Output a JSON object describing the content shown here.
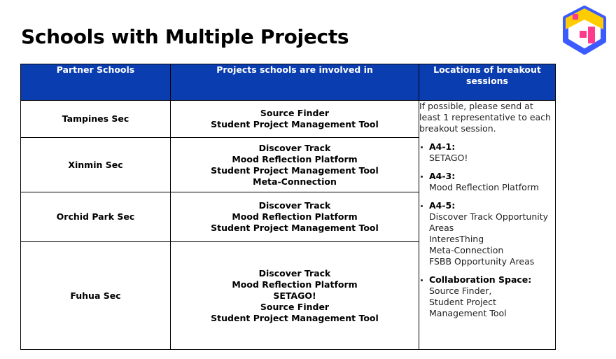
{
  "title": "Schools with Multiple Projects",
  "logo": {
    "icon": "brand-logo-icon",
    "colors": [
      "#ffcc00",
      "#ff3b8d",
      "#3b5bff"
    ]
  },
  "table": {
    "headers": [
      "Partner Schools",
      "Projects schools are involved in",
      "Locations of breakout sessions"
    ],
    "rows": [
      {
        "school": "Tampines Sec",
        "projects": [
          "Source Finder",
          "Student Project Management Tool"
        ]
      },
      {
        "school": "Xinmin Sec",
        "projects": [
          "Discover Track",
          "Mood Reflection Platform",
          "Student Project Management Tool",
          "Meta-Connection"
        ]
      },
      {
        "school": "Orchid Park Sec",
        "projects": [
          "Discover Track",
          "Mood Reflection Platform",
          "Student Project Management Tool"
        ]
      },
      {
        "school": "Fuhua Sec",
        "projects": [
          "Discover Track",
          "Mood Reflection Platform",
          "SETAGO!",
          "Source Finder",
          "Student Project Management Tool"
        ]
      }
    ],
    "locations": {
      "intro": "If possible, please send at least 1 representative to each breakout session.",
      "items": [
        {
          "title": "A4-1:",
          "entries": [
            "SETAGO!"
          ]
        },
        {
          "title": "A4-3:",
          "entries": [
            "Mood Reflection Platform"
          ]
        },
        {
          "title": "A4-5:",
          "entries": [
            "Discover Track Opportunity Areas",
            "InteresThing",
            "Meta-Connection",
            "FSBB Opportunity Areas"
          ]
        },
        {
          "title": "Collaboration Space:",
          "entries": [
            "Source Finder,",
            "Student Project Management Tool"
          ]
        }
      ]
    }
  }
}
